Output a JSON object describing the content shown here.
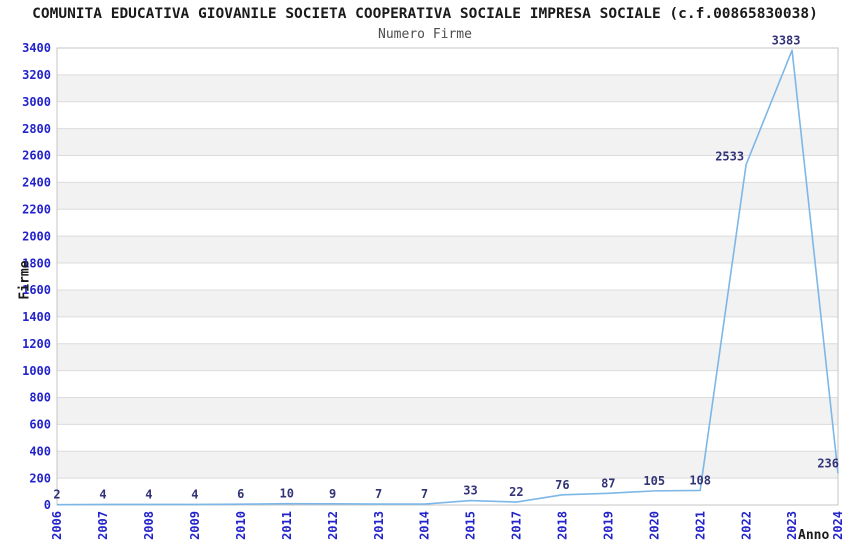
{
  "chart_data": {
    "type": "line",
    "title": "COMUNITA EDUCATIVA GIOVANILE SOCIETA COOPERATIVA SOCIALE IMPRESA SOCIALE (c.f.00865830038)",
    "subtitle": "Numero Firme",
    "xlabel": "Anno",
    "ylabel": "Firme",
    "categories": [
      "2006",
      "2007",
      "2008",
      "2009",
      "2010",
      "2011",
      "2012",
      "2013",
      "2014",
      "2015",
      "2017",
      "2018",
      "2019",
      "2020",
      "2021",
      "2022",
      "2023",
      "2024"
    ],
    "values": [
      2,
      4,
      4,
      4,
      6,
      10,
      9,
      7,
      7,
      33,
      22,
      76,
      87,
      105,
      108,
      2533,
      3383,
      236
    ],
    "ylim": [
      0,
      3400
    ],
    "ytick_step": 200,
    "legend": "none",
    "grid": "horizontal-bands-alternating",
    "colors": {
      "line": "#7db7e8",
      "tick_label": "#2323cb",
      "data_label": "#333377",
      "band": "#f2f2f2",
      "gridline": "#dcdcdc",
      "plot_border": "#c4c4c4",
      "title": "#1a1a1a",
      "subtitle": "#4d4d4d"
    }
  }
}
